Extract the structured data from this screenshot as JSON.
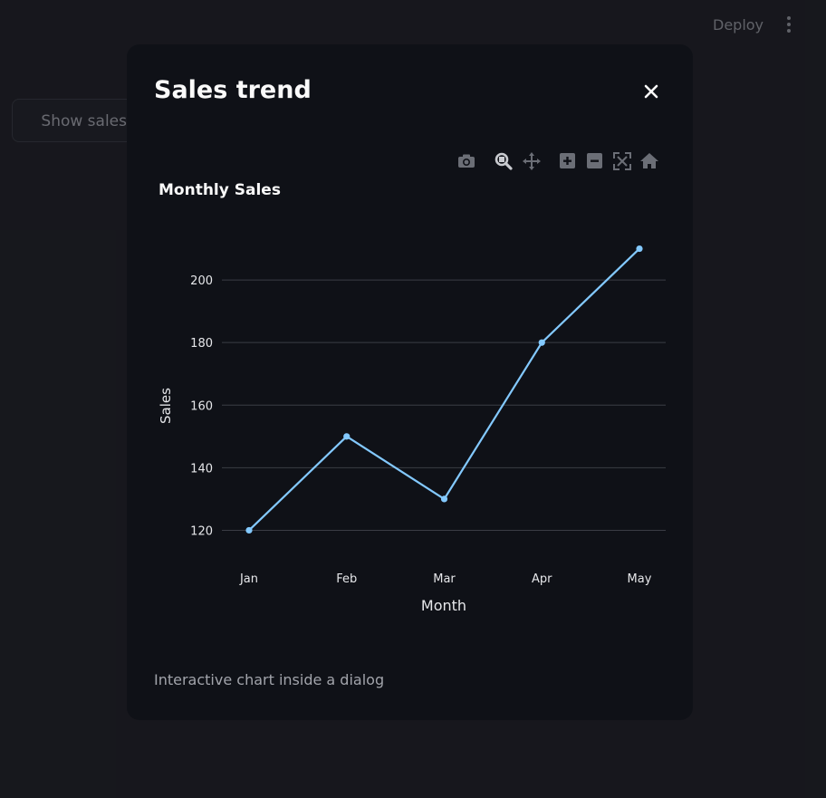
{
  "header": {
    "deploy_label": "Deploy",
    "menu_icon": "kebab-menu-icon"
  },
  "main": {
    "show_button_label": "Show sales chart"
  },
  "dialog": {
    "title": "Sales trend",
    "close_icon": "close-icon",
    "caption": "Interactive chart inside a dialog",
    "modebar_icons": [
      "camera-icon",
      "zoom-icon",
      "pan-icon",
      "zoom-in-icon",
      "zoom-out-icon",
      "autoscale-icon",
      "home-icon"
    ]
  },
  "colors": {
    "app_background": "#1c1d22",
    "dialog_background": "#0f1117",
    "line": "#83c9ff",
    "grid": "#3a3d45",
    "text": "#fafafa"
  },
  "chart_data": {
    "type": "line",
    "title": "Monthly Sales",
    "xlabel": "Month",
    "ylabel": "Sales",
    "categories": [
      "Jan",
      "Feb",
      "Mar",
      "Apr",
      "May"
    ],
    "series": [
      {
        "values": [
          120,
          150,
          130,
          180,
          210
        ]
      }
    ],
    "ylim": [
      110,
      220
    ],
    "yticks": [
      120,
      140,
      160,
      180,
      200
    ],
    "grid": true
  }
}
